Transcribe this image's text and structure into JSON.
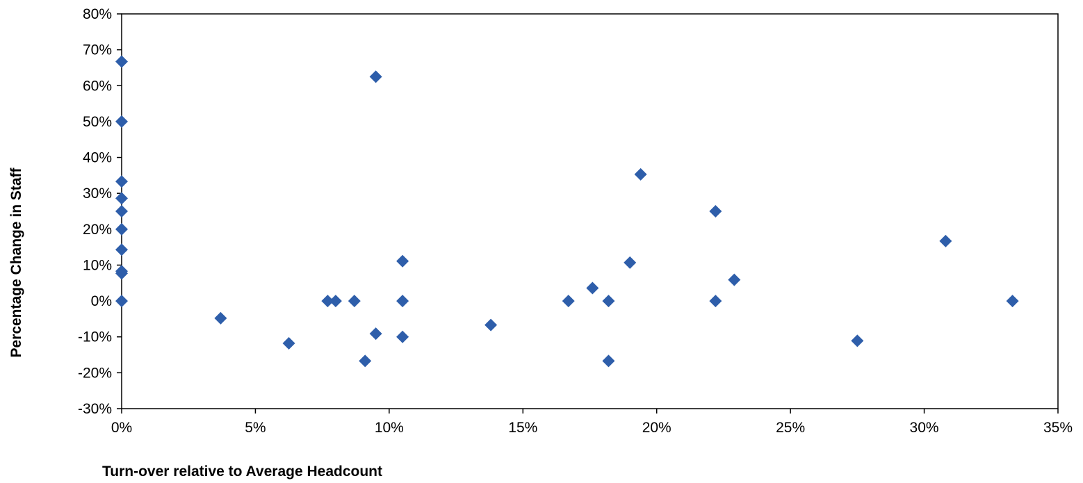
{
  "chart_data": {
    "type": "scatter",
    "title": "",
    "xlabel": "Turn-over relative to Average Headcount",
    "ylabel": "Percentage Change in Staff",
    "xlim": [
      0,
      35
    ],
    "ylim": [
      -30,
      80
    ],
    "x_ticks": [
      "0%",
      "5%",
      "10%",
      "15%",
      "20%",
      "25%",
      "30%",
      "35%"
    ],
    "y_ticks": [
      "-30%",
      "-20%",
      "-10%",
      "0%",
      "10%",
      "20%",
      "30%",
      "40%",
      "50%",
      "60%",
      "70%",
      "80%"
    ],
    "x_tick_values": [
      0,
      5,
      10,
      15,
      20,
      25,
      30,
      35
    ],
    "y_tick_values": [
      -30,
      -20,
      -10,
      0,
      10,
      20,
      30,
      40,
      50,
      60,
      70,
      80
    ],
    "grid": false,
    "legend": "none",
    "marker": "diamond",
    "marker_color": "#2E5EAA",
    "points": [
      {
        "x": 0,
        "y": 66.7
      },
      {
        "x": 0,
        "y": 50
      },
      {
        "x": 0,
        "y": 33.3
      },
      {
        "x": 0,
        "y": 28.6
      },
      {
        "x": 0,
        "y": 25
      },
      {
        "x": 0,
        "y": 20
      },
      {
        "x": 0,
        "y": 14.3
      },
      {
        "x": 0,
        "y": 8.3
      },
      {
        "x": 0,
        "y": 7.7
      },
      {
        "x": 0,
        "y": 0
      },
      {
        "x": 3.7,
        "y": -4.8
      },
      {
        "x": 6.25,
        "y": -11.8
      },
      {
        "x": 7.7,
        "y": 0
      },
      {
        "x": 8.0,
        "y": 0
      },
      {
        "x": 8.7,
        "y": 0
      },
      {
        "x": 9.1,
        "y": -16.7
      },
      {
        "x": 9.5,
        "y": 62.5
      },
      {
        "x": 9.5,
        "y": -9.1
      },
      {
        "x": 10.5,
        "y": 11.1
      },
      {
        "x": 10.5,
        "y": 0
      },
      {
        "x": 10.5,
        "y": -10
      },
      {
        "x": 13.8,
        "y": -6.7
      },
      {
        "x": 16.7,
        "y": 0
      },
      {
        "x": 17.6,
        "y": 3.6
      },
      {
        "x": 18.2,
        "y": 0
      },
      {
        "x": 18.2,
        "y": -16.7
      },
      {
        "x": 19.0,
        "y": 10.7
      },
      {
        "x": 19.4,
        "y": 35.3
      },
      {
        "x": 22.2,
        "y": 25
      },
      {
        "x": 22.2,
        "y": 0
      },
      {
        "x": 22.9,
        "y": 5.9
      },
      {
        "x": 27.5,
        "y": -11.1
      },
      {
        "x": 30.8,
        "y": 16.7
      },
      {
        "x": 33.3,
        "y": 0
      }
    ]
  }
}
